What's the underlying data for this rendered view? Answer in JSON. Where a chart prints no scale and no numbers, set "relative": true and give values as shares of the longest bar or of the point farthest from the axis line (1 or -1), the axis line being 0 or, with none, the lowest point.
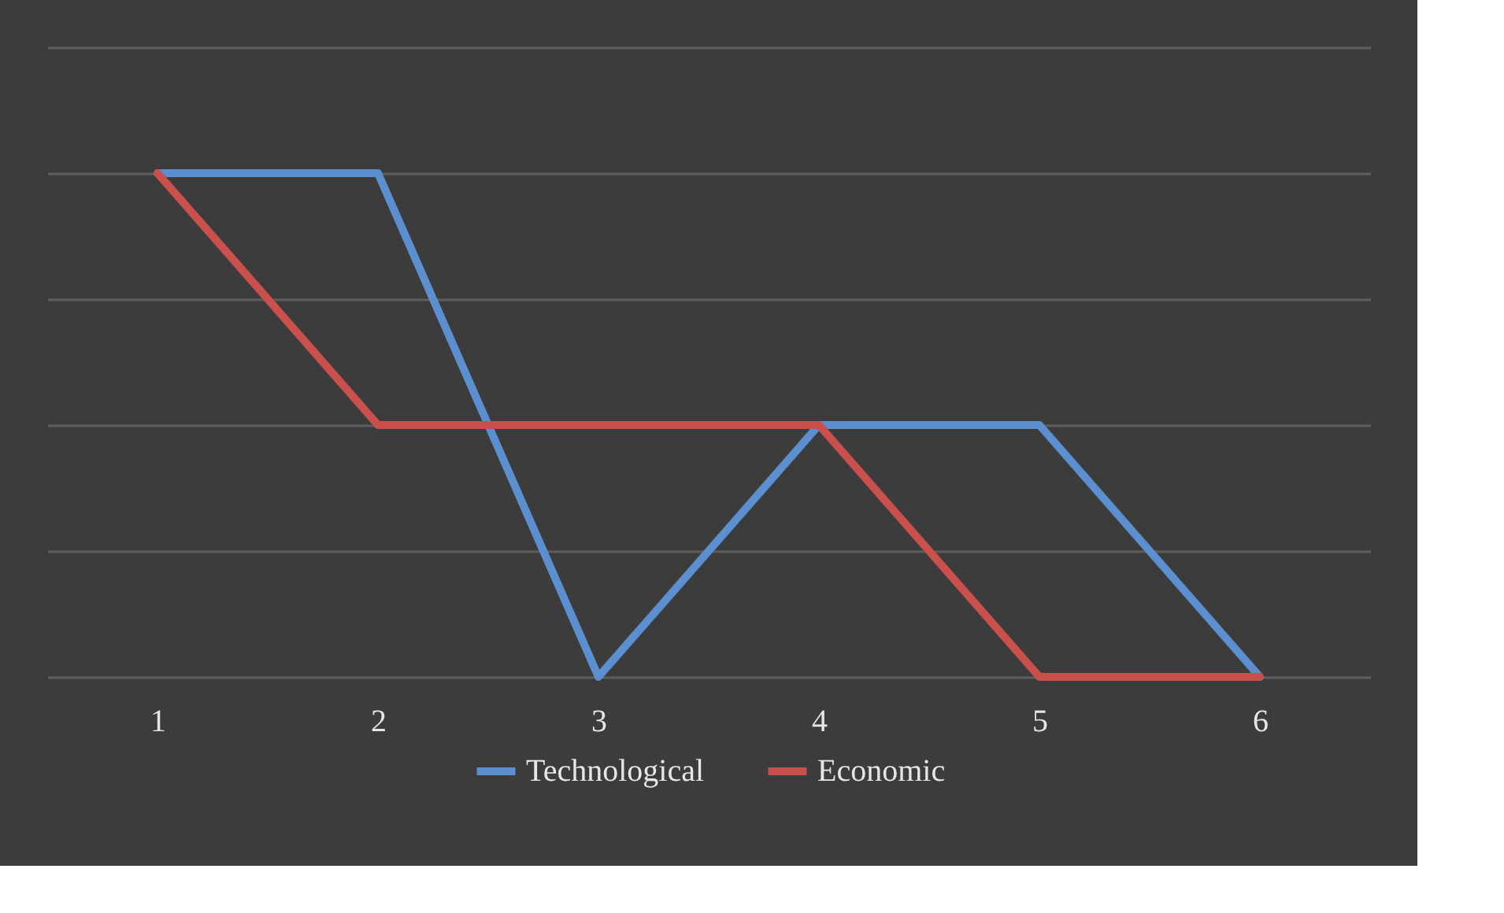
{
  "chart_data": {
    "type": "line",
    "relative": true,
    "categories": [
      "1",
      "2",
      "3",
      "4",
      "5",
      "6"
    ],
    "series": [
      {
        "name": "Technological",
        "color": "#5b8fd0",
        "values": [
          1,
          1,
          0,
          0.5,
          0.5,
          0
        ]
      },
      {
        "name": "Economic",
        "color": "#c9504c",
        "values": [
          1,
          0.5,
          0.5,
          0.5,
          0,
          0
        ]
      }
    ],
    "grid": "y",
    "legend": "bottom",
    "marker": "none",
    "line_style": "solid"
  }
}
